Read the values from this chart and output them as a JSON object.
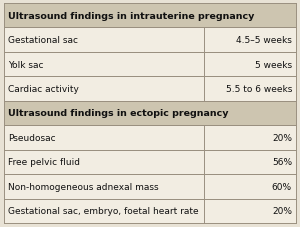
{
  "header1": "Ultrasound findings in intrauterine pregnancy",
  "header2": "Ultrasound findings in ectopic pregnancy",
  "rows_intrauterine": [
    [
      "Gestational sac",
      "4.5–5 weeks"
    ],
    [
      "Yolk sac",
      "5 weeks"
    ],
    [
      "Cardiac activity",
      "5.5 to 6 weeks"
    ]
  ],
  "rows_ectopic": [
    [
      "Pseudosac",
      "20%"
    ],
    [
      "Free pelvic fluid",
      "56%"
    ],
    [
      "Non-homogeneous adnexal mass",
      "60%"
    ],
    [
      "Gestational sac, embryo, foetal heart rate",
      "20%"
    ]
  ],
  "header_bg": "#cdc5b0",
  "row_bg": "#f2ede2",
  "border_color": "#9a9080",
  "text_color": "#111111",
  "font_size": 6.5,
  "header_font_size": 6.8,
  "col_split": 0.685,
  "outer_bg": "#e8e2d5"
}
